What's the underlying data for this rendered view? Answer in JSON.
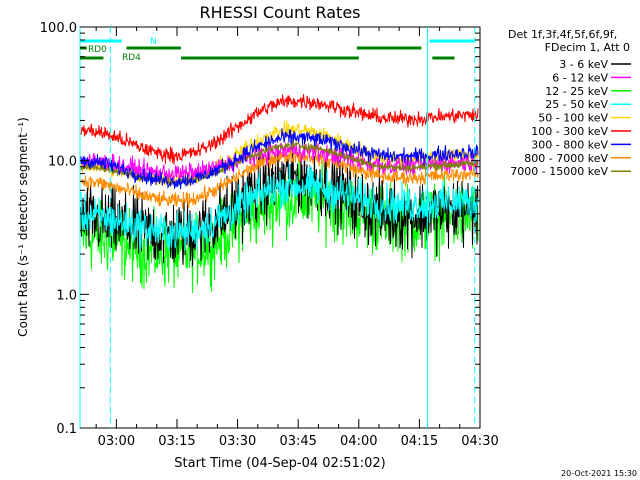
{
  "chart_data": {
    "type": "line",
    "title": "RHESSI Count Rates",
    "xlabel": "Start Time (04-Sep-04 02:51:02)",
    "ylabel": "Count Rate (s⁻¹ detector segment⁻¹)",
    "y_scale": "log",
    "ylim": [
      0.1,
      100.0
    ],
    "xlim_minutes": [
      51.0,
      150.0
    ],
    "x_ticks": [
      {
        "minute": 60,
        "label": "03:00"
      },
      {
        "minute": 75,
        "label": "03:15"
      },
      {
        "minute": 90,
        "label": "03:30"
      },
      {
        "minute": 105,
        "label": "03:45"
      },
      {
        "minute": 120,
        "label": "04:00"
      },
      {
        "minute": 135,
        "label": "04:15"
      },
      {
        "minute": 150,
        "label": "04:30"
      }
    ],
    "y_ticks": [
      {
        "value": 0.1,
        "label": "0.1"
      },
      {
        "value": 1.0,
        "label": "1.0"
      },
      {
        "value": 10.0,
        "label": "10.0"
      },
      {
        "value": 100.0,
        "label": "100.0"
      }
    ],
    "legend": {
      "position": "right",
      "header": [
        "Det 1f,3f,4f,5f,6f,9f,",
        "FDecim 1, Att 0"
      ]
    },
    "series": [
      {
        "name": "3 - 6 keV",
        "color": "#000000",
        "start": 3.6,
        "trough": 2.8,
        "peak": 7.5,
        "end": 4.2,
        "noise": 0.55
      },
      {
        "name": "6 - 12 keV",
        "color": "#ff00ff",
        "start": 10.0,
        "trough": 8.0,
        "peak": 12.0,
        "end": 9.8,
        "noise": 0.15
      },
      {
        "name": "12 - 25 keV",
        "color": "#00ff00",
        "start": 2.7,
        "trough": 2.0,
        "peak": 5.2,
        "end": 3.8,
        "noise": 0.55
      },
      {
        "name": "25 - 50 keV",
        "color": "#00ffff",
        "start": 3.9,
        "trough": 2.9,
        "peak": 6.5,
        "end": 5.0,
        "noise": 0.3
      },
      {
        "name": "50 - 100 keV",
        "color": "#ffd700",
        "start": 9.2,
        "trough": 7.2,
        "peak": 17.0,
        "end": 11.0,
        "noise": 0.12
      },
      {
        "name": "100 - 300 keV",
        "color": "#ff0000",
        "start": 17.0,
        "trough": 11.0,
        "peak": 28.0,
        "end": 22.0,
        "noise": 0.12
      },
      {
        "name": "300 - 800 keV",
        "color": "#0000ff",
        "start": 10.0,
        "trough": 7.0,
        "peak": 15.0,
        "end": 11.5,
        "noise": 0.12
      },
      {
        "name": "800 - 7000 keV",
        "color": "#ff8c00",
        "start": 7.0,
        "trough": 5.0,
        "peak": 11.0,
        "end": 8.0,
        "noise": 0.12
      },
      {
        "name": "7000 - 15000 keV",
        "color": "#808000",
        "start": 9.0,
        "trough": 7.0,
        "peak": 13.0,
        "end": 9.5,
        "noise": 0.06
      }
    ],
    "profile_minutes": {
      "start": 51.0,
      "trough": 75.0,
      "peak": 104.0,
      "trough2": 130.0,
      "end": 150.0
    },
    "vertical_markers": [
      {
        "minute": 51.0,
        "style": "solid",
        "color": "#00ffff"
      },
      {
        "minute": 58.5,
        "style": "dashed",
        "color": "#00ffff"
      },
      {
        "minute": 137.0,
        "style": "solid",
        "color": "#00ffff"
      },
      {
        "minute": 148.7,
        "style": "dashed",
        "color": "#00ffff"
      }
    ],
    "flag_bars": [
      {
        "label": "N",
        "color": "#00ffff",
        "row": 1,
        "segments": [
          [
            51.0,
            61.3
          ],
          [
            137.5,
            148.5
          ]
        ]
      },
      {
        "label": "RD0",
        "color": "#008000",
        "row": 2,
        "segments": [
          [
            51.0,
            52.7
          ],
          [
            62.5,
            76.0
          ],
          [
            119.5,
            135.5
          ]
        ]
      },
      {
        "label": "RD4",
        "color": "#008000",
        "row": 3,
        "segments": [
          [
            51.0,
            56.8
          ],
          [
            76.0,
            120.0
          ],
          [
            138.2,
            143.7
          ]
        ]
      }
    ],
    "timestamp": "20-Oct-2021 15:30"
  }
}
